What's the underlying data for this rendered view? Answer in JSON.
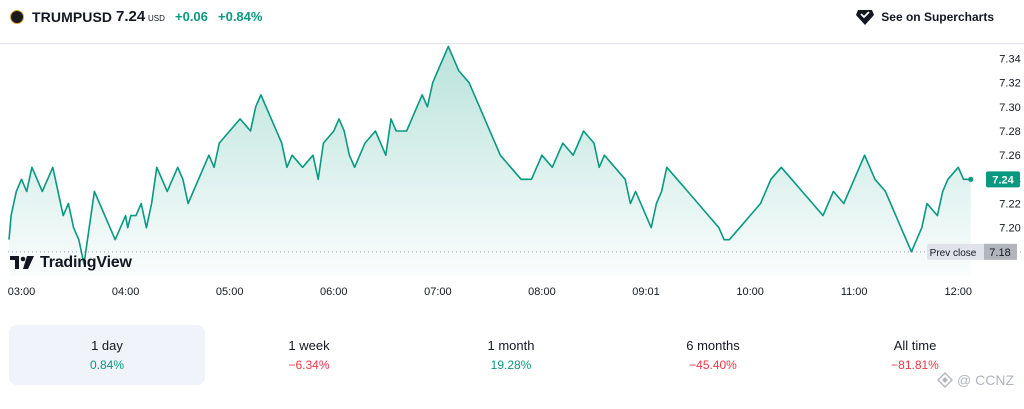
{
  "header": {
    "symbol": "TRUMPUSD",
    "price": "7.24",
    "currency": "USD",
    "change_abs": "+0.06",
    "change_pct": "+0.84%",
    "see_link": "See on Supercharts"
  },
  "colors": {
    "line": "#089981",
    "negative": "#f23645",
    "axis_text": "#131722"
  },
  "chart_data": {
    "type": "area",
    "title": "TRUMPUSD",
    "x_tick_labels": [
      "03:00",
      "04:00",
      "05:00",
      "06:00",
      "07:00",
      "08:00",
      "09:01",
      "10:00",
      "11:00",
      "12:00"
    ],
    "x_tick_times": [
      0,
      1,
      2,
      3,
      4,
      5,
      6,
      7,
      8,
      9
    ],
    "y_ticks": [
      7.34,
      7.32,
      7.3,
      7.28,
      7.26,
      7.24,
      7.22,
      7.2
    ],
    "y_tick_labels": [
      "7.34",
      "7.32",
      "7.30",
      "7.28",
      "7.26",
      "7.24",
      "7.22",
      "7.20"
    ],
    "ylim": [
      7.16,
      7.352
    ],
    "xlim": [
      -0.13,
      9.18
    ],
    "prev_close": 7.18,
    "prev_close_label": "Prev close",
    "prev_close_value": "7.18",
    "last_price_label": "7.24",
    "series": [
      {
        "name": "TRUMPUSD",
        "times": [
          -0.12,
          -0.1,
          -0.05,
          0.0,
          0.05,
          0.1,
          0.15,
          0.2,
          0.3,
          0.35,
          0.4,
          0.45,
          0.5,
          0.55,
          0.6,
          0.7,
          0.75,
          0.8,
          0.9,
          1.0,
          1.02,
          1.05,
          1.1,
          1.15,
          1.2,
          1.25,
          1.3,
          1.35,
          1.4,
          1.5,
          1.55,
          1.6,
          1.7,
          1.8,
          1.85,
          1.9,
          2.0,
          2.1,
          2.2,
          2.25,
          2.3,
          2.4,
          2.5,
          2.55,
          2.6,
          2.7,
          2.8,
          2.85,
          2.9,
          3.0,
          3.05,
          3.1,
          3.15,
          3.2,
          3.3,
          3.4,
          3.45,
          3.5,
          3.55,
          3.6,
          3.7,
          3.8,
          3.85,
          3.9,
          3.95,
          4.0,
          4.05,
          4.1,
          4.2,
          4.3,
          4.4,
          4.5,
          4.55,
          4.6,
          4.7,
          4.8,
          4.9,
          5.0,
          5.1,
          5.2,
          5.3,
          5.4,
          5.5,
          5.55,
          5.6,
          5.7,
          5.8,
          5.85,
          5.9,
          6.0,
          6.05,
          6.1,
          6.15,
          6.2,
          6.3,
          6.4,
          6.5,
          6.6,
          6.7,
          6.75,
          6.8,
          6.9,
          7.0,
          7.1,
          7.2,
          7.3,
          7.4,
          7.5,
          7.6,
          7.7,
          7.8,
          7.9,
          8.0,
          8.05,
          8.1,
          8.2,
          8.3,
          8.35,
          8.4,
          8.45,
          8.5,
          8.55,
          8.6,
          8.65,
          8.7,
          8.8,
          8.85,
          8.9,
          9.0,
          9.05,
          9.08,
          9.12
        ],
        "values": [
          7.19,
          7.21,
          7.23,
          7.24,
          7.23,
          7.25,
          7.24,
          7.23,
          7.25,
          7.23,
          7.21,
          7.22,
          7.2,
          7.19,
          7.17,
          7.23,
          7.22,
          7.21,
          7.19,
          7.21,
          7.2,
          7.21,
          7.21,
          7.22,
          7.2,
          7.22,
          7.25,
          7.24,
          7.23,
          7.25,
          7.24,
          7.22,
          7.24,
          7.26,
          7.25,
          7.27,
          7.28,
          7.29,
          7.28,
          7.3,
          7.31,
          7.29,
          7.27,
          7.25,
          7.26,
          7.25,
          7.26,
          7.24,
          7.27,
          7.28,
          7.29,
          7.28,
          7.26,
          7.25,
          7.27,
          7.28,
          7.27,
          7.26,
          7.29,
          7.28,
          7.28,
          7.3,
          7.31,
          7.3,
          7.32,
          7.33,
          7.34,
          7.35,
          7.33,
          7.32,
          7.3,
          7.28,
          7.27,
          7.26,
          7.25,
          7.24,
          7.24,
          7.26,
          7.25,
          7.27,
          7.26,
          7.28,
          7.27,
          7.25,
          7.26,
          7.25,
          7.24,
          7.22,
          7.23,
          7.21,
          7.2,
          7.22,
          7.23,
          7.25,
          7.24,
          7.23,
          7.22,
          7.21,
          7.2,
          7.19,
          7.19,
          7.2,
          7.21,
          7.22,
          7.24,
          7.25,
          7.24,
          7.23,
          7.22,
          7.21,
          7.23,
          7.22,
          7.24,
          7.25,
          7.26,
          7.24,
          7.23,
          7.22,
          7.21,
          7.2,
          7.19,
          7.18,
          7.19,
          7.2,
          7.22,
          7.21,
          7.23,
          7.24,
          7.25,
          7.24,
          7.24,
          7.24
        ]
      }
    ]
  },
  "brand": {
    "logo_text": "TradingView"
  },
  "ranges": [
    {
      "label": "1 day",
      "value": "0.84%",
      "dir": "pos",
      "selected": true
    },
    {
      "label": "1 week",
      "value": "−6.34%",
      "dir": "neg",
      "selected": false
    },
    {
      "label": "1 month",
      "value": "19.28%",
      "dir": "pos",
      "selected": false
    },
    {
      "label": "6 months",
      "value": "−45.40%",
      "dir": "neg",
      "selected": false
    },
    {
      "label": "All time",
      "value": "−81.81%",
      "dir": "neg",
      "selected": false
    }
  ],
  "watermark": {
    "text": "@ CCNZ"
  }
}
